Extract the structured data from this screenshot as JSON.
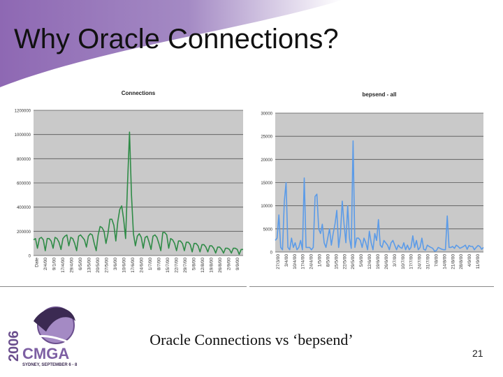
{
  "slide": {
    "title": "Why Oracle Connections?",
    "caption": "Oracle Connections vs ‘bepsend’",
    "page_number": "21"
  },
  "logo": {
    "year": "2006",
    "name": "CMGA",
    "tagline": "SYDNEY, SEPTEMBER 6 - 8"
  },
  "colors": {
    "banner": "#8e68b3",
    "plot_bg": "#c9c9c9",
    "line_left": "#2e8b46",
    "line_right": "#5b9be8"
  },
  "chart_data": [
    {
      "type": "line",
      "title": "Connections",
      "xlabel": "",
      "ylabel": "",
      "ylim": [
        0,
        1200000
      ],
      "y_ticks": [
        "0",
        "200000",
        "400000",
        "600000",
        "800000",
        "1000000",
        "1200000"
      ],
      "x_ticks": [
        "Date",
        "2/4/00",
        "9/1/00",
        "17/4/00",
        "29/4/00",
        "6/5/00",
        "13/5/00",
        "20/5/00",
        "27/5/00",
        "3/6/00",
        "10/6/00",
        "17/6/00",
        "24/6/00",
        "1/7/00",
        "8/7/00",
        "15/7/00",
        "22/7/00",
        "29/7/00",
        "5/8/00",
        "12/8/00",
        "19/8/00",
        "26/8/00",
        "2/9/00",
        "9/9/00"
      ],
      "grid": true,
      "series": [
        {
          "values": [
            130000,
            140000,
            60000,
            140000,
            150000,
            130000,
            40000,
            140000,
            140000,
            120000,
            60000,
            150000,
            140000,
            110000,
            50000,
            140000,
            160000,
            170000,
            80000,
            150000,
            140000,
            100000,
            40000,
            160000,
            170000,
            150000,
            130000,
            70000,
            160000,
            180000,
            170000,
            100000,
            40000,
            170000,
            240000,
            230000,
            200000,
            100000,
            180000,
            300000,
            300000,
            250000,
            120000,
            280000,
            380000,
            410000,
            300000,
            140000,
            600000,
            1020000,
            500000,
            180000,
            80000,
            160000,
            180000,
            150000,
            60000,
            150000,
            160000,
            110000,
            50000,
            160000,
            170000,
            150000,
            100000,
            40000,
            190000,
            190000,
            170000,
            60000,
            140000,
            130000,
            100000,
            40000,
            120000,
            120000,
            100000,
            40000,
            110000,
            110000,
            90000,
            30000,
            100000,
            100000,
            80000,
            30000,
            90000,
            90000,
            70000,
            30000,
            80000,
            80000,
            60000,
            20000,
            70000,
            70000,
            50000,
            20000,
            60000,
            60000,
            50000,
            20000,
            60000,
            60000,
            50000,
            10000,
            50000,
            50000
          ]
        }
      ]
    },
    {
      "type": "line",
      "title": "bepsend - all",
      "xlabel": "",
      "ylabel": "",
      "ylim": [
        0,
        30000
      ],
      "y_ticks": [
        "0",
        "5000",
        "10000",
        "15000",
        "20000",
        "25000",
        "30000"
      ],
      "x_ticks": [
        "27/3/00",
        "3/4/00",
        "10/4/00",
        "17/4/00",
        "24/4/00",
        "1/5/00",
        "8/5/00",
        "15/5/00",
        "22/5/00",
        "29/5/00",
        "5/6/00",
        "12/6/00",
        "19/6/00",
        "26/6/00",
        "3/7/00",
        "10/7/00",
        "17/7/00",
        "24/7/00",
        "31/7/00",
        "7/8/00",
        "14/8/00",
        "21/8/00",
        "28/8/00",
        "4/9/00",
        "11/9/00"
      ],
      "grid": true,
      "series": [
        {
          "values": [
            2500,
            3000,
            8000,
            1000,
            500,
            11000,
            15000,
            1000,
            500,
            3000,
            1000,
            2000,
            500,
            1000,
            2500,
            500,
            16000,
            1000,
            1000,
            1000,
            500,
            1000,
            12000,
            12500,
            5000,
            4000,
            6000,
            2000,
            1000,
            3000,
            5000,
            1500,
            4000,
            6000,
            9000,
            1000,
            4000,
            11000,
            6000,
            2000,
            10000,
            3000,
            800,
            24000,
            1000,
            3000,
            3000,
            2500,
            1000,
            3000,
            2000,
            500,
            4500,
            2000,
            500,
            4000,
            2500,
            7000,
            1500,
            1000,
            2500,
            2000,
            1500,
            500,
            2000,
            2500,
            1500,
            500,
            1500,
            1000,
            800,
            2000,
            500,
            1500,
            500,
            1000,
            3500,
            1000,
            2500,
            500,
            1000,
            3000,
            600,
            400,
            1500,
            1200,
            1000,
            800,
            200,
            300,
            1000,
            800,
            600,
            500,
            500,
            7800,
            1000,
            1000,
            1200,
            800,
            1500,
            1200,
            800,
            1000,
            1200,
            1500,
            600,
            1400,
            1200,
            1200,
            500,
            1000,
            1400,
            1200,
            600,
            1000
          ]
        }
      ]
    }
  ]
}
